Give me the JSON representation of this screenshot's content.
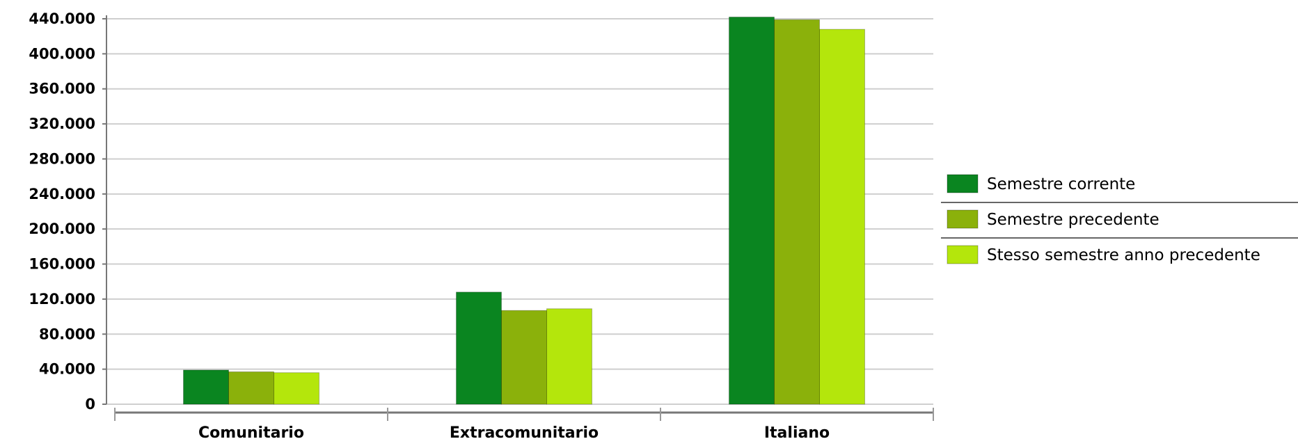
{
  "chart_data": {
    "type": "bar",
    "categories": [
      "Comunitario",
      "Extracomunitario",
      "Italiano"
    ],
    "series": [
      {
        "name": "Semestre corrente",
        "color": "#0a8520",
        "values": [
          39000,
          128000,
          442000
        ]
      },
      {
        "name": "Semestre precedente",
        "color": "#8bb10b",
        "values": [
          37000,
          107000,
          439000
        ]
      },
      {
        "name": "Stesso semestre anno precedente",
        "color": "#b4e60c",
        "values": [
          36000,
          109000,
          428000
        ]
      }
    ],
    "ylim": [
      0,
      440000
    ],
    "yticks": [
      0,
      40000,
      80000,
      120000,
      160000,
      200000,
      240000,
      280000,
      320000,
      360000,
      400000,
      440000
    ],
    "ytick_labels": [
      "0",
      "40.000",
      "80.000",
      "120.000",
      "160.000",
      "200.000",
      "240.000",
      "280.000",
      "320.000",
      "360.000",
      "400.000",
      "440.000"
    ],
    "grid": true,
    "legend_position": "right"
  }
}
